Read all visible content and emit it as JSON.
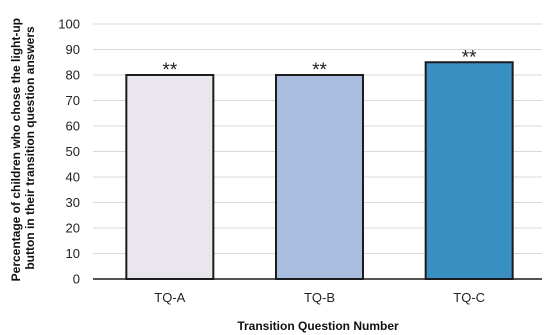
{
  "chart_data": {
    "type": "bar",
    "categories": [
      "TQ-A",
      "TQ-B",
      "TQ-C"
    ],
    "values": [
      80,
      80,
      85
    ],
    "annotations": [
      "**",
      "**",
      "**"
    ],
    "bar_colors": [
      "#e9e6ee",
      "#a9bedf",
      "#3a8fc2"
    ],
    "bar_stroke": "#1c1c1c",
    "xlabel": "Transition Question Number",
    "ylabel_lines": [
      "Percentage of children who chose the light-up",
      "button in their transition question answers"
    ],
    "ylim": [
      0,
      100
    ],
    "yticks": [
      "0",
      "10",
      "20",
      "30",
      "40",
      "50",
      "60",
      "70",
      "80",
      "90",
      "100"
    ],
    "grid": true,
    "grid_color": "#d9d9d9"
  }
}
